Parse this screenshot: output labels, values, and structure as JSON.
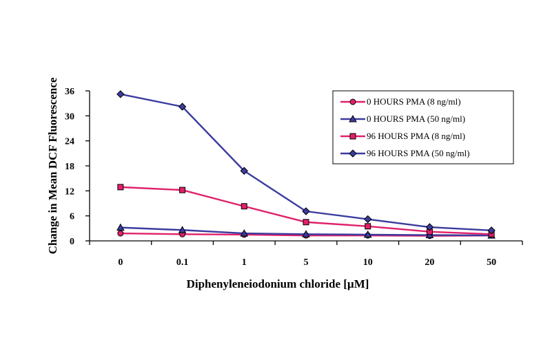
{
  "chart_data": {
    "type": "line",
    "title": "",
    "xlabel": "Diphenyleneiodonium chloride [µM]",
    "ylabel": "Change in Mean DCF Fluorescence",
    "categories": [
      "0",
      "0.1",
      "1",
      "5",
      "10",
      "20",
      "50"
    ],
    "ylim": [
      0,
      36
    ],
    "yticks": [
      0,
      6,
      12,
      18,
      24,
      30,
      36
    ],
    "grid": false,
    "legend_position": "top-right",
    "series": [
      {
        "name": "0 HOURS PMA (8 ng/ml)",
        "marker": "circle",
        "color": "#e0206a",
        "values": [
          1.8,
          1.6,
          1.5,
          1.3,
          1.3,
          1.2,
          1.3
        ]
      },
      {
        "name": "0 HOURS PMA (50 ng/ml)",
        "marker": "triangle",
        "color": "#3b3b9f",
        "values": [
          3.2,
          2.6,
          1.8,
          1.6,
          1.5,
          1.4,
          1.3
        ]
      },
      {
        "name": "96 HOURS PMA (8 ng/ml)",
        "marker": "square",
        "color": "#e0206a",
        "values": [
          12.9,
          12.2,
          8.3,
          4.5,
          3.5,
          2.2,
          1.6
        ]
      },
      {
        "name": "96 HOURS PMA (50 ng/ml)",
        "marker": "diamond",
        "color": "#3b3b9f",
        "values": [
          35.2,
          32.2,
          16.8,
          7.1,
          5.2,
          3.3,
          2.5
        ]
      }
    ]
  }
}
